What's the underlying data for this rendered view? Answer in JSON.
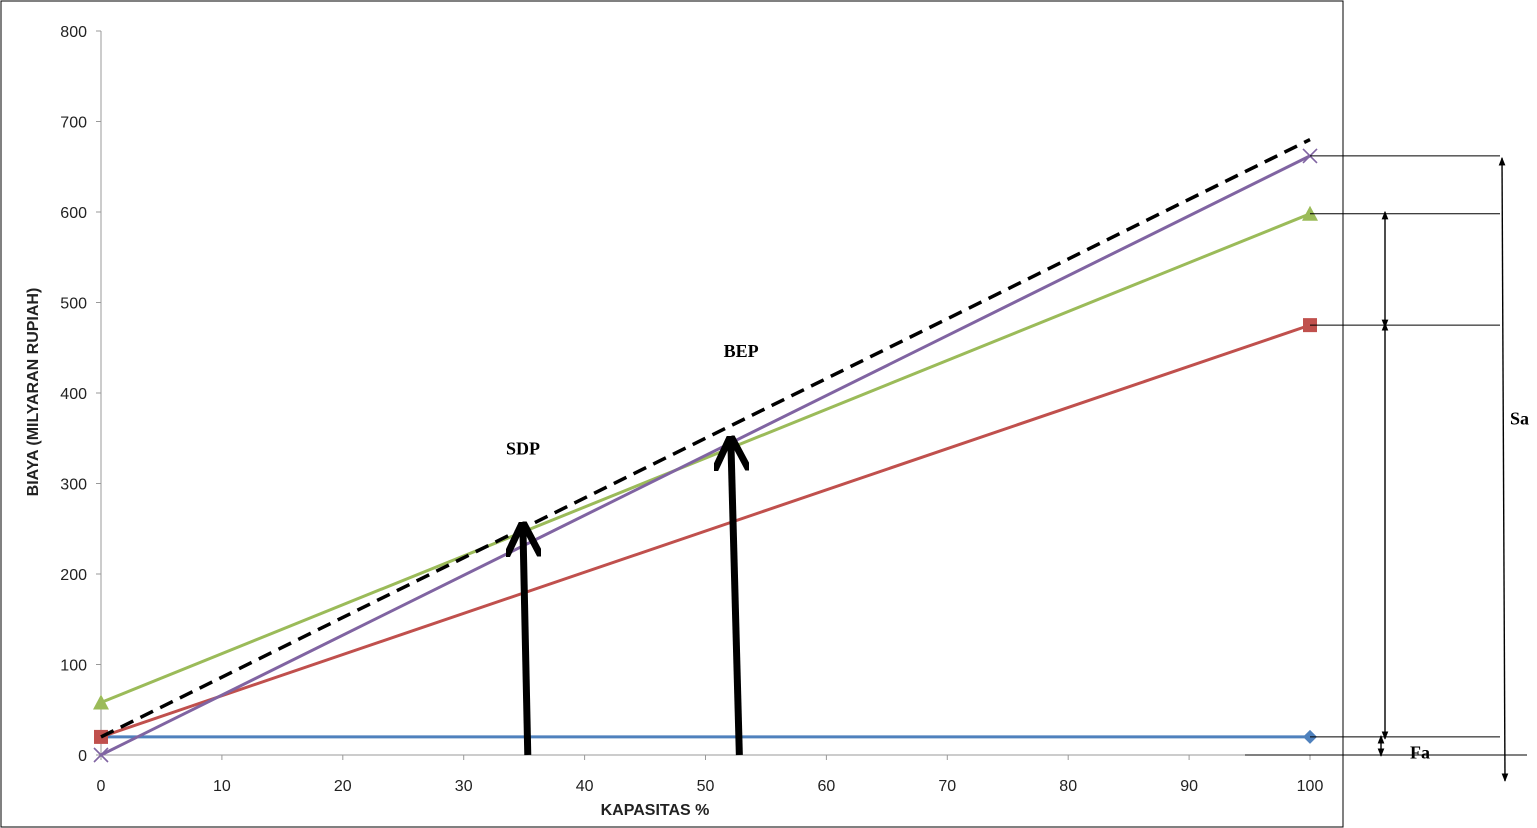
{
  "chart_data": {
    "type": "line",
    "xlabel": "KAPASITAS %",
    "ylabel": "BIAYA (MILYARAN RUPIAH)",
    "xlim": [
      0,
      100
    ],
    "ylim": [
      0,
      800
    ],
    "x_ticks": [
      "0",
      "10",
      "20",
      "30",
      "40",
      "50",
      "60",
      "70",
      "80",
      "90",
      "100"
    ],
    "y_ticks": [
      "0",
      "100",
      "200",
      "300",
      "400",
      "500",
      "600",
      "700",
      "800"
    ],
    "grid": false,
    "legend": "none",
    "series": [
      {
        "color": "#4f81bd",
        "marker": "diamond",
        "x": [
          0,
          100
        ],
        "y": [
          20,
          20
        ]
      },
      {
        "color": "#c0504d",
        "marker": "square",
        "x": [
          0,
          100
        ],
        "y": [
          20,
          475
        ]
      },
      {
        "color": "#9bbb59",
        "marker": "triangle",
        "x": [
          0,
          100
        ],
        "y": [
          58,
          598
        ]
      },
      {
        "color": "#8064a2",
        "marker": "x",
        "x": [
          0,
          100
        ],
        "y": [
          0,
          662
        ]
      },
      {
        "color": "#000000",
        "style": "dashed",
        "marker": "none",
        "x": [
          0,
          100
        ],
        "y": [
          20,
          680
        ]
      }
    ],
    "annotations": [
      {
        "text": "SDP",
        "x": 33.5,
        "y": 332,
        "arrow_from": [
          35.3,
          0
        ],
        "arrow_to": [
          34.9,
          250
        ]
      },
      {
        "text": "BEP",
        "x": 51.5,
        "y": 440,
        "arrow_from": [
          52.8,
          0
        ],
        "arrow_to": [
          52.1,
          345
        ]
      },
      {
        "text": "Sa",
        "span": [
          0,
          662
        ]
      },
      {
        "text": "Fa",
        "span": [
          0,
          20
        ]
      }
    ]
  }
}
